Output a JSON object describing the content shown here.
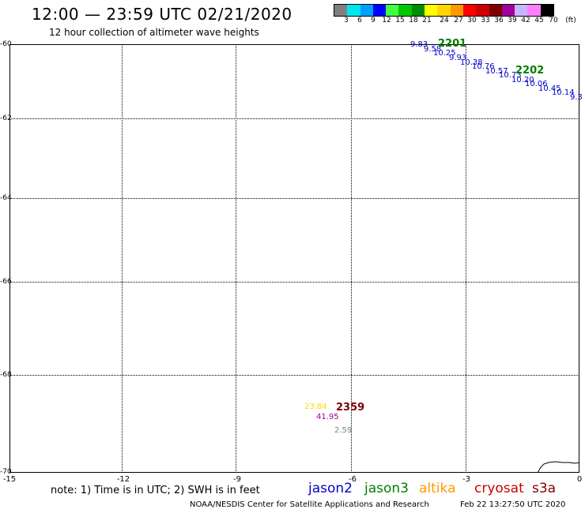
{
  "title": "12:00 — 23:59 UTC 02/21/2020",
  "subtitle": "12 hour collection of altimeter wave heights",
  "scale": {
    "labels": [
      "3",
      "6",
      "9",
      "12",
      "15",
      "18",
      "21",
      "24",
      "27",
      "30",
      "33",
      "36",
      "39",
      "42",
      "45",
      "70",
      "(ft)"
    ],
    "colors": [
      "#808080",
      "#00e5ee",
      "#00a0ff",
      "#0000ff",
      "#40ff40",
      "#00c800",
      "#008c00",
      "#ffff00",
      "#ffd700",
      "#ff9900",
      "#ff0000",
      "#cc0000",
      "#800000",
      "#a000a0",
      "#c8b4ff",
      "#ff80ff",
      "#000000"
    ]
  },
  "axes": {
    "y_labels": [
      "-60",
      "-62",
      "-64",
      "-66",
      "-68",
      "-70"
    ],
    "x_labels": [
      "-15",
      "-12",
      "-9",
      "-6",
      "-3",
      "0"
    ]
  },
  "passes": [
    {
      "label": "2201",
      "color": "#008000"
    },
    {
      "label": "2202",
      "color": "#008000"
    },
    {
      "label": "2359",
      "color": "#800000"
    }
  ],
  "values_pass1": [
    {
      "text": "9.83",
      "color": "#0000cc"
    },
    {
      "text": "9.58",
      "color": "#0000cc"
    },
    {
      "text": "10.25",
      "color": "#0000cc"
    },
    {
      "text": "9.93",
      "color": "#0000cc"
    },
    {
      "text": "10.38",
      "color": "#0000cc"
    },
    {
      "text": "10.76",
      "color": "#0000cc"
    },
    {
      "text": "10.57",
      "color": "#0000cc"
    },
    {
      "text": "10.73",
      "color": "#0000cc"
    },
    {
      "text": "10.20",
      "color": "#0000cc"
    },
    {
      "text": "10.06",
      "color": "#0000cc"
    },
    {
      "text": "10.45",
      "color": "#0000cc"
    },
    {
      "text": "10.14",
      "color": "#0000cc"
    },
    {
      "text": "9.3",
      "color": "#0000cc"
    }
  ],
  "values_pass3": [
    {
      "text": "23.84",
      "color": "#ffd700"
    },
    {
      "text": "41.95",
      "color": "#a000a0"
    },
    {
      "text": "2.59",
      "color": "#808080"
    }
  ],
  "note": "note:  1) Time is in UTC;  2) SWH is in feet",
  "satellites": [
    {
      "name": "jason2",
      "color": "#0000cc"
    },
    {
      "name": "jason3",
      "color": "#008000"
    },
    {
      "name": "altika",
      "color": "#ff9900"
    },
    {
      "name": "cryosat",
      "color": "#cc0000"
    },
    {
      "name": "s3a",
      "color": "#800000"
    }
  ],
  "credit": "NOAA/NESDIS Center for Satellite Applications and Research",
  "timestamp": "Feb 22 13:27:50 UTC 2020"
}
